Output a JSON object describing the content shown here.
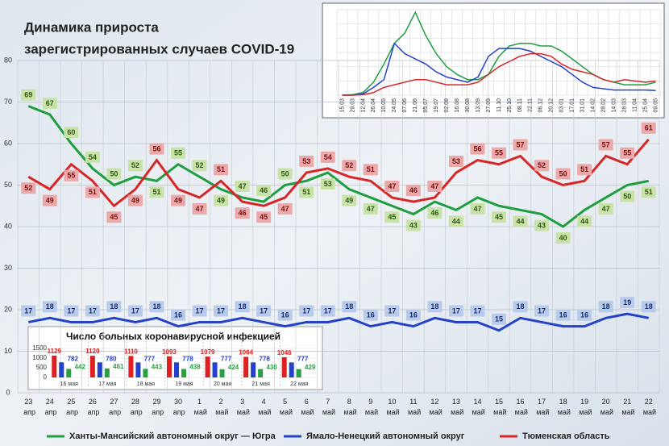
{
  "chart_data": [
    {
      "type": "line",
      "title": [
        "Динамика прироста",
        "зарегистрированных случаев COVID-19"
      ],
      "categories": [
        "23 апр",
        "24 апр",
        "25 апр",
        "26 апр",
        "27 апр",
        "28 апр",
        "29 апр",
        "30 апр",
        "1 май",
        "2 май",
        "3 май",
        "4 май",
        "5 май",
        "6 май",
        "7 май",
        "8 май",
        "9 май",
        "10 май",
        "11 май",
        "12 май",
        "13 май",
        "14 май",
        "15 май",
        "16 май",
        "17 май",
        "18 май",
        "19 май",
        "20 май",
        "21 май",
        "22 май"
      ],
      "series": [
        {
          "name": "Ханты-Мансийский автономный округ — Югра",
          "color": "#1e9e3e",
          "values": [
            69,
            67,
            60,
            54,
            50,
            52,
            51,
            55,
            52,
            49,
            47,
            46,
            50,
            51,
            53,
            49,
            47,
            45,
            43,
            46,
            44,
            47,
            45,
            44,
            43,
            40,
            44,
            47,
            50,
            51
          ]
        },
        {
          "name": "Ямало-Ненецкий автономный округ",
          "color": "#2442c8",
          "values": [
            17,
            18,
            17,
            17,
            18,
            17,
            18,
            16,
            17,
            17,
            18,
            17,
            16,
            17,
            17,
            18,
            16,
            17,
            16,
            18,
            17,
            17,
            15,
            18,
            17,
            16,
            16,
            18,
            19,
            18
          ]
        },
        {
          "name": "Тюменская область",
          "color": "#d62728",
          "values": [
            52,
            49,
            55,
            51,
            45,
            49,
            56,
            49,
            47,
            51,
            46,
            45,
            47,
            53,
            54,
            52,
            51,
            47,
            46,
            47,
            53,
            56,
            55,
            57,
            52,
            50,
            51,
            57,
            55,
            61
          ]
        }
      ],
      "ylim": [
        0,
        80
      ],
      "yticks": [
        0,
        10,
        20,
        30,
        40,
        50,
        60,
        70,
        80
      ],
      "grid": true
    },
    {
      "type": "bar",
      "title": "Число больных коронавирусной  инфекцией",
      "categories": [
        "16 мая",
        "17 мая",
        "18 мая",
        "19 мая",
        "20 мая",
        "21 мая",
        "22 мая"
      ],
      "series": [
        {
          "color": "#e02020",
          "values": [
            1129,
            1120,
            1110,
            1093,
            1079,
            1064,
            1046
          ]
        },
        {
          "color": "#2442c8",
          "values": [
            782,
            780,
            777,
            778,
            777,
            778,
            777
          ]
        },
        {
          "color": "#2aa040",
          "values": [
            442,
            461,
            443,
            438,
            424,
            430,
            429
          ]
        }
      ],
      "ylim": [
        0,
        1500
      ],
      "yticks": [
        0,
        500,
        1000,
        1500
      ]
    },
    {
      "type": "line",
      "categories": [
        "15.03",
        "29.03",
        "12.04",
        "26.04",
        "10.05",
        "24.05",
        "07.06",
        "21.06",
        "05.07",
        "19.07",
        "02.08",
        "16.08",
        "30.08",
        "13.09",
        "27.09",
        "11.10",
        "25.10",
        "08.11",
        "22.11",
        "06.12",
        "20.12",
        "03.01",
        "17.01",
        "31.01",
        "14.02",
        "28.02",
        "14.03",
        "28.03",
        "11.04",
        "25.04",
        "09.05"
      ],
      "series": [
        {
          "color": "#1e9e3e",
          "values": [
            0,
            2,
            10,
            50,
            120,
            200,
            240,
            320,
            230,
            160,
            110,
            80,
            60,
            60,
            80,
            150,
            190,
            200,
            200,
            190,
            190,
            170,
            140,
            110,
            80,
            60,
            50,
            40,
            40,
            40,
            50
          ]
        },
        {
          "color": "#2442c8",
          "values": [
            0,
            0,
            5,
            30,
            60,
            200,
            160,
            140,
            120,
            90,
            70,
            60,
            50,
            70,
            150,
            180,
            180,
            180,
            170,
            150,
            130,
            110,
            80,
            50,
            30,
            25,
            20,
            20,
            20,
            20,
            18
          ]
        },
        {
          "color": "#d62728",
          "values": [
            0,
            0,
            2,
            10,
            30,
            40,
            50,
            60,
            60,
            50,
            40,
            40,
            40,
            50,
            80,
            110,
            130,
            150,
            160,
            160,
            150,
            120,
            100,
            90,
            80,
            60,
            50,
            60,
            55,
            50,
            55
          ]
        }
      ],
      "ylim": [
        0,
        330
      ]
    }
  ]
}
